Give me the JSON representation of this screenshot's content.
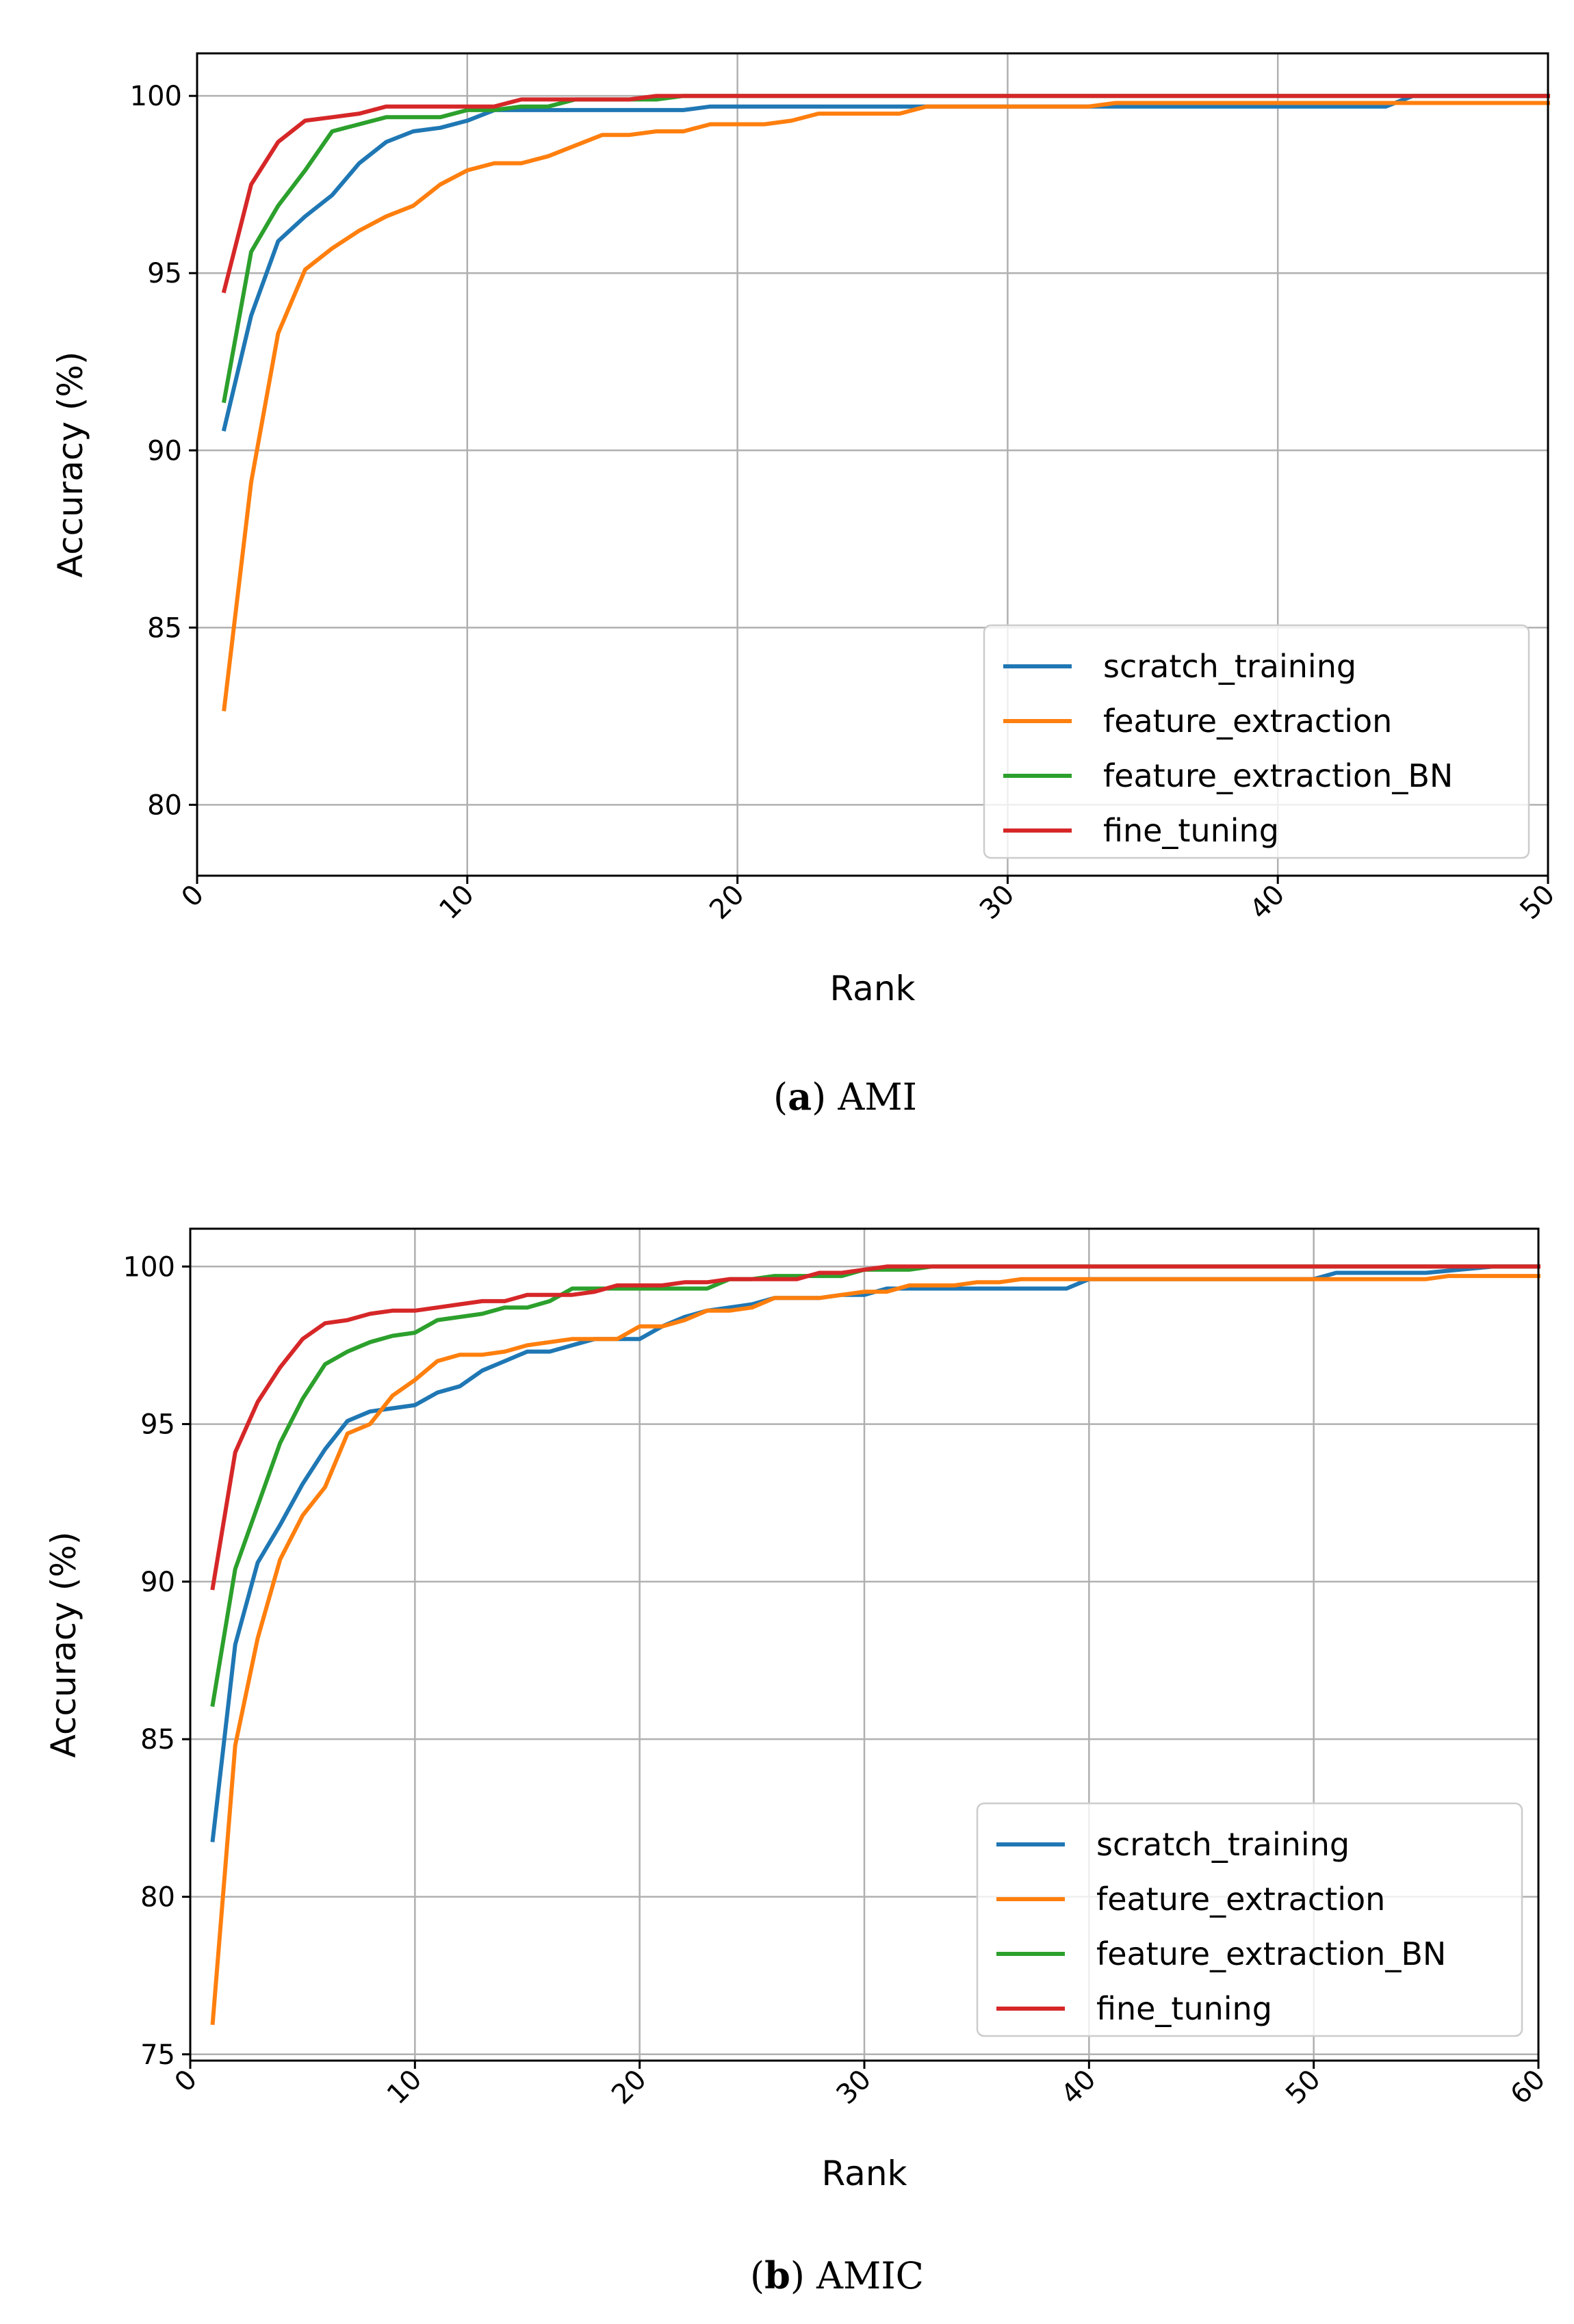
{
  "chart_data": [
    {
      "type": "line",
      "caption_letter": "a",
      "caption_text": "AMI",
      "xlabel": "Rank",
      "ylabel": "Accuracy (%)",
      "xlim": [
        0,
        50
      ],
      "ylim": [
        78,
        101.2
      ],
      "xticks": [
        0,
        10,
        20,
        30,
        40,
        50
      ],
      "yticks": [
        80,
        85,
        90,
        95,
        100
      ],
      "grid": true,
      "legend_position": "lower-right",
      "series": [
        {
          "name": "scratch_training",
          "color": "#1f77b4",
          "x": [
            1,
            2,
            3,
            4,
            5,
            6,
            7,
            8,
            9,
            10,
            11,
            12,
            13,
            14,
            15,
            16,
            17,
            18,
            19,
            20,
            21,
            22,
            23,
            24,
            25,
            26,
            27,
            28,
            29,
            30,
            31,
            32,
            33,
            34,
            35,
            36,
            37,
            38,
            39,
            40,
            41,
            42,
            43,
            44,
            45,
            46,
            47,
            48,
            49,
            50
          ],
          "y": [
            90.6,
            93.8,
            95.9,
            96.6,
            97.2,
            98.1,
            98.7,
            99.0,
            99.1,
            99.3,
            99.6,
            99.6,
            99.6,
            99.6,
            99.6,
            99.6,
            99.6,
            99.6,
            99.7,
            99.7,
            99.7,
            99.7,
            99.7,
            99.7,
            99.7,
            99.7,
            99.7,
            99.7,
            99.7,
            99.7,
            99.7,
            99.7,
            99.7,
            99.7,
            99.7,
            99.7,
            99.7,
            99.7,
            99.7,
            99.7,
            99.7,
            99.7,
            99.7,
            99.7,
            100,
            100,
            100,
            100,
            100,
            100
          ]
        },
        {
          "name": "feature_extraction",
          "color": "#ff7f0e",
          "x": [
            1,
            2,
            3,
            4,
            5,
            6,
            7,
            8,
            9,
            10,
            11,
            12,
            13,
            14,
            15,
            16,
            17,
            18,
            19,
            20,
            21,
            22,
            23,
            24,
            25,
            26,
            27,
            28,
            29,
            30,
            31,
            32,
            33,
            34,
            35,
            36,
            37,
            38,
            39,
            40,
            41,
            42,
            43,
            44,
            45,
            46,
            47,
            48,
            49,
            50
          ],
          "y": [
            82.7,
            89.1,
            93.3,
            95.1,
            95.7,
            96.2,
            96.6,
            96.9,
            97.5,
            97.9,
            98.1,
            98.1,
            98.3,
            98.6,
            98.9,
            98.9,
            99.0,
            99.0,
            99.2,
            99.2,
            99.2,
            99.3,
            99.5,
            99.5,
            99.5,
            99.5,
            99.7,
            99.7,
            99.7,
            99.7,
            99.7,
            99.7,
            99.7,
            99.8,
            99.8,
            99.8,
            99.8,
            99.8,
            99.8,
            99.8,
            99.8,
            99.8,
            99.8,
            99.8,
            99.8,
            99.8,
            99.8,
            99.8,
            99.8,
            99.8
          ]
        },
        {
          "name": "feature_extraction_BN",
          "color": "#2ca02c",
          "x": [
            1,
            2,
            3,
            4,
            5,
            6,
            7,
            8,
            9,
            10,
            11,
            12,
            13,
            14,
            15,
            16,
            17,
            18,
            19,
            20,
            21,
            22,
            23,
            24,
            25,
            26,
            27,
            28,
            29,
            30,
            31,
            32,
            33,
            34,
            35,
            36,
            37,
            38,
            39,
            40,
            41,
            42,
            43,
            44,
            45,
            46,
            47,
            48,
            49,
            50
          ],
          "y": [
            91.4,
            95.6,
            96.9,
            97.9,
            99.0,
            99.2,
            99.4,
            99.4,
            99.4,
            99.6,
            99.6,
            99.7,
            99.7,
            99.9,
            99.9,
            99.9,
            99.9,
            100,
            100,
            100,
            100,
            100,
            100,
            100,
            100,
            100,
            100,
            100,
            100,
            100,
            100,
            100,
            100,
            100,
            100,
            100,
            100,
            100,
            100,
            100,
            100,
            100,
            100,
            100,
            100,
            100,
            100,
            100,
            100,
            100
          ]
        },
        {
          "name": "fine_tuning",
          "color": "#d62728",
          "x": [
            1,
            2,
            3,
            4,
            5,
            6,
            7,
            8,
            9,
            10,
            11,
            12,
            13,
            14,
            15,
            16,
            17,
            18,
            19,
            20,
            21,
            22,
            23,
            24,
            25,
            26,
            27,
            28,
            29,
            30,
            31,
            32,
            33,
            34,
            35,
            36,
            37,
            38,
            39,
            40,
            41,
            42,
            43,
            44,
            45,
            46,
            47,
            48,
            49,
            50
          ],
          "y": [
            94.5,
            97.5,
            98.7,
            99.3,
            99.4,
            99.5,
            99.7,
            99.7,
            99.7,
            99.7,
            99.7,
            99.9,
            99.9,
            99.9,
            99.9,
            99.9,
            100,
            100,
            100,
            100,
            100,
            100,
            100,
            100,
            100,
            100,
            100,
            100,
            100,
            100,
            100,
            100,
            100,
            100,
            100,
            100,
            100,
            100,
            100,
            100,
            100,
            100,
            100,
            100,
            100,
            100,
            100,
            100,
            100,
            100
          ]
        }
      ]
    },
    {
      "type": "line",
      "caption_letter": "b",
      "caption_text": "AMIC",
      "xlabel": "Rank",
      "ylabel": "Accuracy (%)",
      "xlim": [
        0,
        60
      ],
      "ylim": [
        74.8,
        101.2
      ],
      "xticks": [
        0,
        10,
        20,
        30,
        40,
        50,
        60
      ],
      "yticks": [
        75,
        80,
        85,
        90,
        95,
        100
      ],
      "grid": true,
      "legend_position": "lower-right",
      "series": [
        {
          "name": "scratch_training",
          "color": "#1f77b4",
          "x": [
            1,
            2,
            3,
            4,
            5,
            6,
            7,
            8,
            9,
            10,
            11,
            12,
            13,
            14,
            15,
            16,
            17,
            18,
            19,
            20,
            21,
            22,
            23,
            24,
            25,
            26,
            27,
            28,
            29,
            30,
            31,
            32,
            33,
            34,
            35,
            36,
            37,
            38,
            39,
            40,
            45,
            50,
            51,
            55,
            58,
            60
          ],
          "y": [
            81.8,
            88.0,
            90.6,
            91.8,
            93.1,
            94.2,
            95.1,
            95.4,
            95.5,
            95.6,
            96.0,
            96.2,
            96.7,
            97.0,
            97.3,
            97.3,
            97.5,
            97.7,
            97.7,
            97.7,
            98.1,
            98.4,
            98.6,
            98.7,
            98.8,
            99.0,
            99.0,
            99.0,
            99.1,
            99.1,
            99.3,
            99.3,
            99.3,
            99.3,
            99.3,
            99.3,
            99.3,
            99.3,
            99.3,
            99.6,
            99.6,
            99.6,
            99.8,
            99.8,
            100,
            100
          ]
        },
        {
          "name": "feature_extraction",
          "color": "#ff7f0e",
          "x": [
            1,
            2,
            3,
            4,
            5,
            6,
            7,
            8,
            9,
            10,
            11,
            12,
            13,
            14,
            15,
            16,
            17,
            18,
            19,
            20,
            21,
            22,
            23,
            24,
            25,
            26,
            27,
            28,
            29,
            30,
            31,
            32,
            33,
            34,
            35,
            36,
            37,
            38,
            40,
            45,
            50,
            55,
            56,
            60
          ],
          "y": [
            76.0,
            84.8,
            88.2,
            90.7,
            92.1,
            93.0,
            94.7,
            95.0,
            95.9,
            96.4,
            97.0,
            97.2,
            97.2,
            97.3,
            97.5,
            97.6,
            97.7,
            97.7,
            97.7,
            98.1,
            98.1,
            98.3,
            98.6,
            98.6,
            98.7,
            99.0,
            99.0,
            99.0,
            99.1,
            99.2,
            99.2,
            99.4,
            99.4,
            99.4,
            99.5,
            99.5,
            99.6,
            99.6,
            99.6,
            99.6,
            99.6,
            99.6,
            99.7,
            99.7
          ]
        },
        {
          "name": "feature_extraction_BN",
          "color": "#2ca02c",
          "x": [
            1,
            2,
            3,
            4,
            5,
            6,
            7,
            8,
            9,
            10,
            11,
            12,
            13,
            14,
            15,
            16,
            17,
            18,
            19,
            20,
            21,
            22,
            23,
            24,
            25,
            26,
            27,
            28,
            29,
            30,
            31,
            32,
            33,
            34,
            40,
            50,
            60
          ],
          "y": [
            86.1,
            90.4,
            92.4,
            94.4,
            95.8,
            96.9,
            97.3,
            97.6,
            97.8,
            97.9,
            98.3,
            98.4,
            98.5,
            98.7,
            98.7,
            98.9,
            99.3,
            99.3,
            99.3,
            99.3,
            99.3,
            99.3,
            99.3,
            99.6,
            99.6,
            99.7,
            99.7,
            99.7,
            99.7,
            99.9,
            99.9,
            99.9,
            100,
            100,
            100,
            100,
            100
          ]
        },
        {
          "name": "fine_tuning",
          "color": "#d62728",
          "x": [
            1,
            2,
            3,
            4,
            5,
            6,
            7,
            8,
            9,
            10,
            11,
            12,
            13,
            14,
            15,
            16,
            17,
            18,
            19,
            20,
            21,
            22,
            23,
            24,
            25,
            26,
            27,
            28,
            29,
            30,
            31,
            32,
            40,
            50,
            60
          ],
          "y": [
            89.8,
            94.1,
            95.7,
            96.8,
            97.7,
            98.2,
            98.3,
            98.5,
            98.6,
            98.6,
            98.7,
            98.8,
            98.9,
            98.9,
            99.1,
            99.1,
            99.1,
            99.2,
            99.4,
            99.4,
            99.4,
            99.5,
            99.5,
            99.6,
            99.6,
            99.6,
            99.6,
            99.8,
            99.8,
            99.9,
            100,
            100,
            100,
            100,
            100
          ]
        }
      ]
    }
  ]
}
